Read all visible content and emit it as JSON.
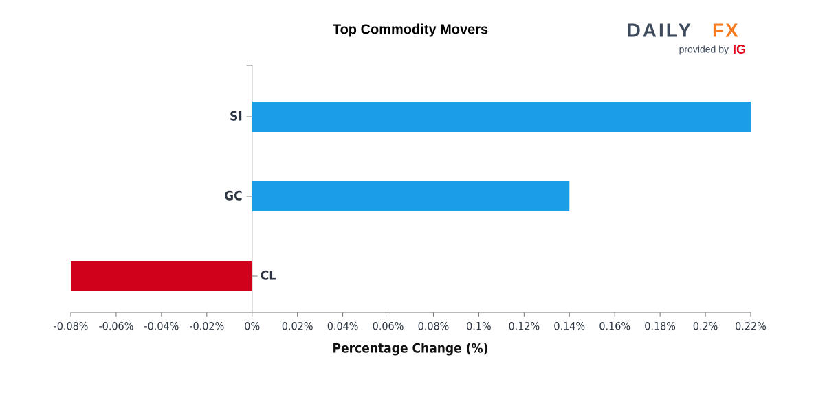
{
  "chart_data": {
    "type": "hbar",
    "title": "Top Commodity Movers",
    "logo": {
      "brand_left": "DAILY",
      "brand_right": "FX",
      "provided": "provided by",
      "owner": "IG"
    },
    "categories": [
      "SI",
      "GC",
      "CL"
    ],
    "values": [
      0.22,
      0.14,
      -0.08
    ],
    "colors": [
      "#1b9ee6",
      "#1b9ee6",
      "#d0021b"
    ],
    "xlim": [
      -0.08,
      0.22
    ],
    "xticks": [
      {
        "value": -0.08,
        "label": "-0.08%"
      },
      {
        "value": -0.06,
        "label": "-0.06%"
      },
      {
        "value": -0.04,
        "label": "-0.04%"
      },
      {
        "value": -0.02,
        "label": "-0.02%"
      },
      {
        "value": 0,
        "label": "0%"
      },
      {
        "value": 0.02,
        "label": "0.02%"
      },
      {
        "value": 0.04,
        "label": "0.04%"
      },
      {
        "value": 0.06,
        "label": "0.06%"
      },
      {
        "value": 0.08,
        "label": "0.08%"
      },
      {
        "value": 0.1,
        "label": "0.1%"
      },
      {
        "value": 0.12,
        "label": "0.12%"
      },
      {
        "value": 0.14,
        "label": "0.14%"
      },
      {
        "value": 0.16,
        "label": "0.16%"
      },
      {
        "value": 0.18,
        "label": "0.18%"
      },
      {
        "value": 0.2,
        "label": "0.2%"
      },
      {
        "value": 0.22,
        "label": "0.22%"
      }
    ],
    "xlabel": "Percentage Change (%)"
  }
}
